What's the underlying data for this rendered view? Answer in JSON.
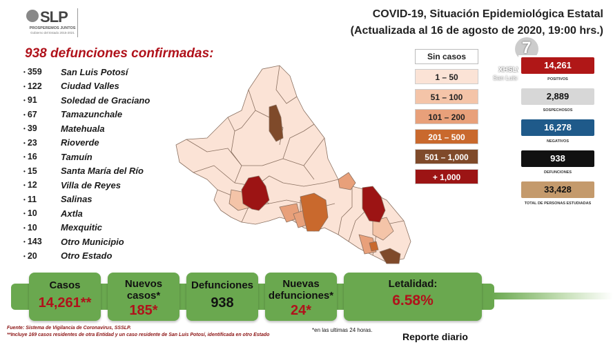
{
  "header": {
    "logo": "SLP",
    "logo_sub": "PROSPEREMOS JUNTOS",
    "logo_sub2": "Gobierno del Estado 2015-2021",
    "title_line1": "COVID-19, Situación Epidemiológica Estatal",
    "title_line2": "(Actualizada al 16 de agosto de 2020, 19:00 hrs.)"
  },
  "deaths": {
    "title": "938 defunciones confirmadas:",
    "items": [
      {
        "count": "359",
        "name": "San Luis Potosí"
      },
      {
        "count": "122",
        "name": "Ciudad Valles"
      },
      {
        "count": "91",
        "name": "Soledad de Graciano"
      },
      {
        "count": "67",
        "name": "Tamazunchale"
      },
      {
        "count": "39",
        "name": "Matehuala"
      },
      {
        "count": "23",
        "name": "Rioverde"
      },
      {
        "count": "16",
        "name": "Tamuín"
      },
      {
        "count": "15",
        "name": "Santa María del Río"
      },
      {
        "count": "12",
        "name": "Villa de Reyes"
      },
      {
        "count": "11",
        "name": "Salinas"
      },
      {
        "count": "10",
        "name": "Axtla"
      },
      {
        "count": "10",
        "name": "Mexquitic"
      },
      {
        "count": "143",
        "name": "Otro Municipio"
      },
      {
        "count": "20",
        "name": "Otro Estado"
      }
    ]
  },
  "legend": {
    "header": "Sin casos",
    "items": [
      {
        "label": "1 – 50",
        "color": "#fbe3d6",
        "text": "#222"
      },
      {
        "label": "51 – 100",
        "color": "#f4c4a8",
        "text": "#222"
      },
      {
        "label": "101 – 200",
        "color": "#e8a07a",
        "text": "#222"
      },
      {
        "label": "201 – 500",
        "color": "#c9692d",
        "text": "#fff"
      },
      {
        "label": "501 – 1,000",
        "color": "#7f4a2a",
        "text": "#fff"
      },
      {
        "label": "+ 1,000",
        "color": "#9c1414",
        "text": "#fff"
      }
    ]
  },
  "stats": [
    {
      "value": "14,261",
      "label": "POSITIVOS",
      "bg": "#b01717",
      "fg": "#ffffff"
    },
    {
      "value": "2,889",
      "label": "SOSPECHOSOS",
      "bg": "#d7d7d7",
      "fg": "#111111"
    },
    {
      "value": "16,278",
      "label": "NEGATIVOS",
      "bg": "#1f5a8a",
      "fg": "#ffffff"
    },
    {
      "value": "938",
      "label": "DEFUNCIONES",
      "bg": "#111111",
      "fg": "#ffffff"
    },
    {
      "value": "33,428",
      "label": "TOTAL DE PERSONAS ESTUDIADAS",
      "bg": "#c49a6c",
      "fg": "#111111"
    }
  ],
  "watermark": {
    "text": "XHSLV - TDT",
    "sub": "San Luis Potosí"
  },
  "summary": [
    {
      "label": "Casos",
      "value": "14,261**"
    },
    {
      "label": "Nuevos casos*",
      "value": "185*"
    },
    {
      "label": "Defunciones",
      "value": "938"
    },
    {
      "label": "Nuevas defunciones*",
      "value": "24*"
    },
    {
      "label": "Letalidad:",
      "value": "6.58%"
    }
  ],
  "footer": {
    "source": "Fuente: Sistema de Vigilancia de Coronavirus, SSSLP.",
    "note": "**Incluye 169 casos residentes de otra Entidad y un caso residente de San Luis Potosí, identificada en otro Estado",
    "footnote": "*en las ultimas 24 horas.",
    "report": "Reporte diario"
  }
}
